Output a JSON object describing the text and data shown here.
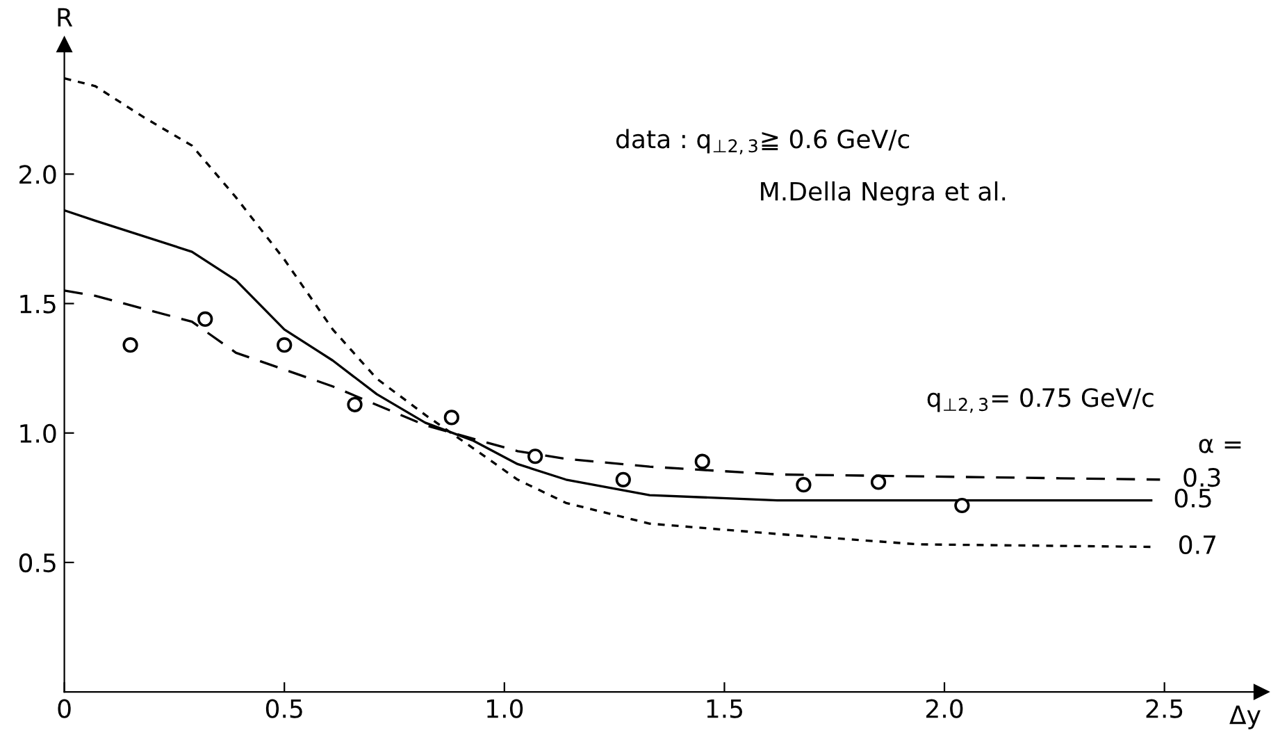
{
  "chart_data": {
    "type": "line",
    "xlabel": "Δy",
    "ylabel": "R",
    "xlim": [
      0,
      2.72
    ],
    "ylim": [
      0,
      2.5
    ],
    "xticks": [
      0,
      0.5,
      {
        "value": 1,
        "label": "1.0"
      },
      1.5,
      {
        "value": 2,
        "label": "2.0"
      },
      2.5
    ],
    "yticks": [
      0.5,
      {
        "value": 1,
        "label": "1.0"
      },
      1.5,
      {
        "value": 2,
        "label": "2.0"
      }
    ],
    "grid": false,
    "legend": false,
    "annotations": [
      "data : q$_{⊥2,3}$≧ 0.6 GeV/c",
      "M.Della Negra et al.",
      "q$_{⊥2,3}$= 0.75 GeV/c",
      "α ="
    ],
    "series": [
      {
        "name": "0.3",
        "color": "#000000",
        "line_style": "dashed",
        "x": [
          0,
          0.07,
          0.18,
          0.29,
          0.39,
          0.61,
          0.82,
          1.03,
          1.14,
          1.33,
          1.62,
          2.49
        ],
        "values": [
          1.55,
          1.53,
          1.48,
          1.43,
          1.31,
          1.18,
          1.03,
          0.93,
          0.9,
          0.87,
          0.84,
          0.82
        ]
      },
      {
        "name": "0.5",
        "color": "#000000",
        "line_style": "solid",
        "x": [
          0,
          0.07,
          0.29,
          0.39,
          0.5,
          0.61,
          0.71,
          0.82,
          0.93,
          1.03,
          1.14,
          1.33,
          1.62,
          2.47
        ],
        "values": [
          1.86,
          1.82,
          1.7,
          1.59,
          1.4,
          1.28,
          1.15,
          1.04,
          0.97,
          0.88,
          0.82,
          0.76,
          0.74,
          0.74
        ]
      },
      {
        "name": "0.7",
        "color": "#000000",
        "line_style": "dotted",
        "x": [
          0,
          0.07,
          0.18,
          0.29,
          0.39,
          0.5,
          0.61,
          0.71,
          0.82,
          0.93,
          1.03,
          1.14,
          1.33,
          1.62,
          1.94,
          2.48
        ],
        "values": [
          2.37,
          2.34,
          2.22,
          2.11,
          1.91,
          1.67,
          1.4,
          1.21,
          1.07,
          0.94,
          0.82,
          0.73,
          0.65,
          0.61,
          0.57,
          0.56
        ]
      },
      {
        "type": "scatter",
        "marker": "circle",
        "color": "#000000",
        "x": [
          0.15,
          0.32,
          0.5,
          0.66,
          0.88,
          1.07,
          1.27,
          1.45,
          1.68,
          1.85,
          2.04
        ],
        "values": [
          1.34,
          1.44,
          1.34,
          1.11,
          1.06,
          0.91,
          0.82,
          0.89,
          0.8,
          0.81,
          0.72
        ]
      }
    ]
  }
}
